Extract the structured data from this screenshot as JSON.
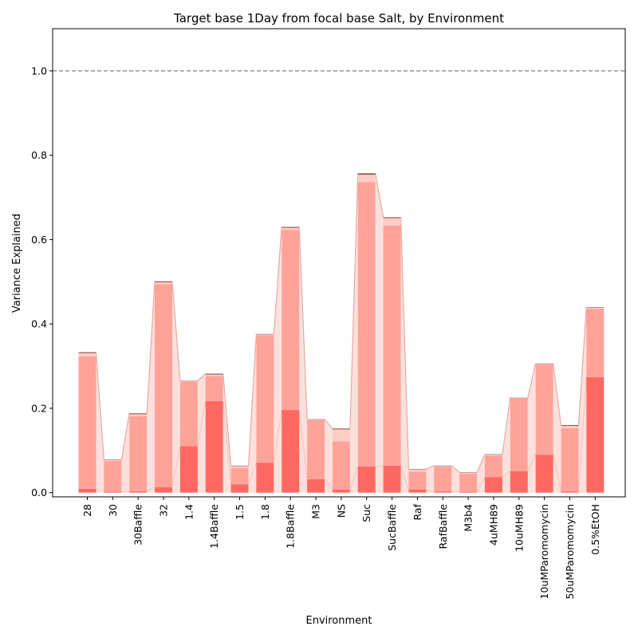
{
  "chart_data": {
    "type": "bar",
    "title": "Target base 1Day from focal base Salt, by Environment",
    "xlabel": "Environment",
    "ylabel": "Variance Explained",
    "ylim": [
      -0.01,
      1.1
    ],
    "yticks": [
      "0.0",
      "0.2",
      "0.4",
      "0.6",
      "0.8",
      "1.0"
    ],
    "reference_line": 1.0,
    "grid": false,
    "legend": "none",
    "categories": [
      "28",
      "30",
      "30Baffle",
      "32",
      "1.4",
      "1.4Baffle",
      "1.5",
      "1.8",
      "1.8Baffle",
      "M3",
      "NS",
      "Suc",
      "SucBaffle",
      "Raf",
      "RafBaffle",
      "M3b4",
      "4uMH89",
      "10uMH89",
      "10uMParomomycin",
      "50uMParomomycin",
      "0.5%EtOH"
    ],
    "series": [
      {
        "values": [
          0.009,
          0.002,
          0.003,
          0.013,
          0.11,
          0.217,
          0.02,
          0.071,
          0.196,
          0.032,
          0.007,
          0.062,
          0.064,
          0.007,
          0.003,
          0.002,
          0.037,
          0.051,
          0.09,
          0.003,
          0.274
        ]
      },
      {
        "values": [
          0.314,
          0.073,
          0.178,
          0.481,
          0.153,
          0.06,
          0.038,
          0.302,
          0.427,
          0.14,
          0.115,
          0.674,
          0.569,
          0.043,
          0.058,
          0.043,
          0.051,
          0.172,
          0.213,
          0.15,
          0.162
        ]
      },
      {
        "values": [
          0.008,
          0.002,
          0.005,
          0.005,
          0.001,
          0.003,
          0.005,
          0.002,
          0.005,
          0.001,
          0.028,
          0.018,
          0.018,
          0.005,
          0.002,
          0.002,
          0.002,
          0.001,
          0.002,
          0.005,
          0.003
        ]
      },
      {
        "values": [
          0.002,
          0.001,
          0.002,
          0.002,
          0.001,
          0.002,
          0.001,
          0.001,
          0.002,
          0.001,
          0.002,
          0.003,
          0.002,
          0.001,
          0.001,
          0.001,
          0.001,
          0.001,
          0.001,
          0.002,
          0.001
        ]
      }
    ],
    "colors": [
      "#ff6961",
      "#ffa39a",
      "#ffcdc3",
      "#8b4a44"
    ],
    "band_color": "#fde0dc"
  }
}
